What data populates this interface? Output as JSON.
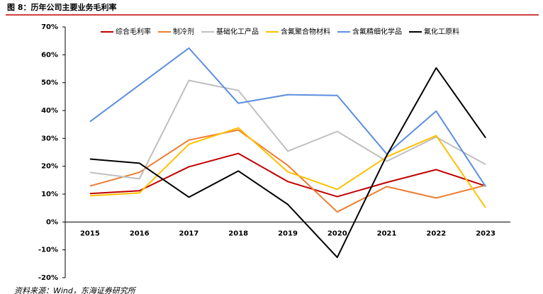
{
  "chart_data": {
    "type": "line",
    "title": "图 8：历年公司主要业务毛利率",
    "source": "资料来源：Wind，东海证券研究所",
    "categories": [
      "2015",
      "2016",
      "2017",
      "2018",
      "2019",
      "2020",
      "2021",
      "2022",
      "2023"
    ],
    "series": [
      {
        "name": "综合毛利率",
        "color": "#c00000",
        "values": [
          10.2,
          11.2,
          19.8,
          24.6,
          14.5,
          9.1,
          14.2,
          18.8,
          12.9
        ]
      },
      {
        "name": "制冷剂",
        "color": "#ed7d31",
        "values": [
          12.9,
          17.8,
          29.4,
          33.0,
          20.3,
          3.6,
          12.7,
          8.6,
          13.2
        ]
      },
      {
        "name": "基础化工产品",
        "color": "#bfbfbf",
        "values": [
          17.8,
          15.5,
          50.8,
          47.2,
          25.4,
          32.5,
          21.8,
          30.5,
          20.6
        ]
      },
      {
        "name": "含氟聚合物材料",
        "color": "#ffc000",
        "values": [
          9.4,
          10.4,
          27.9,
          33.8,
          18.0,
          11.7,
          23.4,
          31.0,
          5.1
        ]
      },
      {
        "name": "含氟精细化学品",
        "color": "#5b8ee0",
        "values": [
          36.0,
          49.2,
          62.4,
          42.6,
          45.7,
          45.4,
          24.4,
          39.8,
          12.7
        ]
      },
      {
        "name": "氟化工原料",
        "color": "#000000",
        "values": [
          22.6,
          21.1,
          8.9,
          18.3,
          6.3,
          -12.7,
          23.9,
          55.3,
          30.2
        ]
      }
    ],
    "ylim": [
      -20,
      70
    ],
    "yticks": [
      {
        "value": -20,
        "label": "-20%"
      },
      {
        "value": -10,
        "label": "-10%"
      },
      {
        "value": 0,
        "label": "0%"
      },
      {
        "value": 10,
        "label": "10%"
      },
      {
        "value": 20,
        "label": "20%"
      },
      {
        "value": 30,
        "label": "30%"
      },
      {
        "value": 40,
        "label": "40%"
      },
      {
        "value": 50,
        "label": "50%"
      },
      {
        "value": 60,
        "label": "60%"
      },
      {
        "value": 70,
        "label": "70%"
      }
    ],
    "grid": false
  }
}
